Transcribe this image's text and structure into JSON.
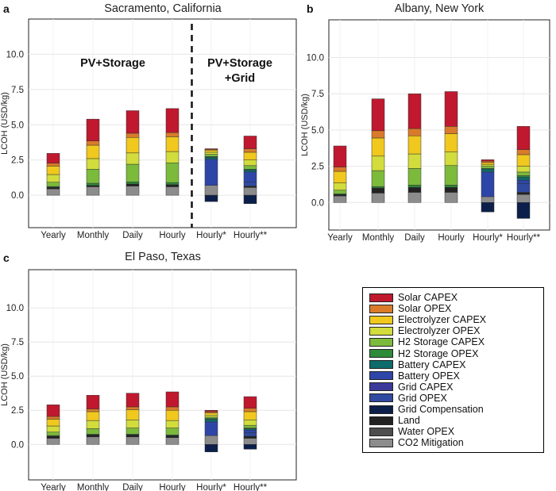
{
  "components": [
    "Solar CAPEX",
    "Solar OPEX",
    "Electrolyzer CAPEX",
    "Electrolyzer OPEX",
    "H2 Storage CAPEX",
    "H2 Storage OPEX",
    "Battery CAPEX",
    "Battery OPEX",
    "Grid CAPEX",
    "Grid OPEX",
    "Grid Compensation",
    "Land",
    "Water OPEX",
    "CO2 Mitigation"
  ],
  "colors": {
    "CO2 Mitigation": "#8c8c8c",
    "Water OPEX": "#4d4d4d",
    "Land": "#222222",
    "Grid Compensation": "#0b1f4a",
    "Grid OPEX": "#2f4aa0",
    "Grid CAPEX": "#3b3a9a",
    "Battery OPEX": "#2e45a8",
    "Battery CAPEX": "#0e6b6b",
    "H2 Storage OPEX": "#2e8b3a",
    "H2 Storage CAPEX": "#7cba3c",
    "Electrolyzer OPEX": "#d2dc3c",
    "Electrolyzer CAPEX": "#f0c81e",
    "Solar OPEX": "#d97b2a",
    "Solar CAPEX": "#c0182e"
  },
  "annotations": {
    "pv_storage": "PV+Storage",
    "pv_storage_grid_1": "PV+Storage",
    "pv_storage_grid_2": "+Grid"
  },
  "chart_data": [
    {
      "panel": "a",
      "title": "Sacramento, California",
      "type": "bar",
      "stacked": true,
      "ylabel": "LCOH (USD/kg)",
      "ylim": [
        -2.3,
        12.5
      ],
      "yticks": [
        "0.0",
        "2.5",
        "5.0",
        "7.5",
        "10.0"
      ],
      "categories": [
        "Yearly",
        "Monthly",
        "Daily",
        "Hourly",
        "Hourly*",
        "Hourly**"
      ],
      "divider_after_category": "Hourly",
      "stacks": [
        {
          "CO2 Mitigation": 0.45,
          "Land": 0.12,
          "H2 Storage OPEX": 0.05,
          "H2 Storage CAPEX": 0.3,
          "Electrolyzer OPEX": 0.55,
          "Electrolyzer CAPEX": 0.6,
          "Solar OPEX": 0.2,
          "Solar CAPEX": 0.7
        },
        {
          "CO2 Mitigation": 0.6,
          "Land": 0.1,
          "H2 Storage OPEX": 0.15,
          "H2 Storage CAPEX": 1.0,
          "Electrolyzer OPEX": 0.75,
          "Electrolyzer CAPEX": 0.95,
          "Solar OPEX": 0.3,
          "Solar CAPEX": 1.55
        },
        {
          "CO2 Mitigation": 0.65,
          "Land": 0.15,
          "H2 Storage OPEX": 0.15,
          "H2 Storage CAPEX": 1.25,
          "Electrolyzer OPEX": 0.8,
          "Electrolyzer CAPEX": 1.1,
          "Solar OPEX": 0.3,
          "Solar CAPEX": 1.6
        },
        {
          "CO2 Mitigation": 0.6,
          "Land": 0.15,
          "H2 Storage OPEX": 0.15,
          "H2 Storage CAPEX": 1.4,
          "Electrolyzer OPEX": 0.8,
          "Electrolyzer CAPEX": 1.05,
          "Solar OPEX": 0.3,
          "Solar CAPEX": 1.7
        },
        {
          "Grid Compensation": -0.45,
          "CO2 Mitigation": 0.7,
          "Battery OPEX": 1.85,
          "Battery CAPEX": 0.15,
          "H2 Storage OPEX": 0.05,
          "H2 Storage CAPEX": 0.15,
          "Electrolyzer OPEX": 0.15,
          "Electrolyzer CAPEX": 0.15,
          "Solar OPEX": 0.05,
          "Solar CAPEX": 0.05
        },
        {
          "Grid Compensation": -0.6,
          "CO2 Mitigation": 0.55,
          "Land": 0.1,
          "Grid OPEX": 0.3,
          "Battery OPEX": 0.7,
          "Battery CAPEX": 0.15,
          "H2 Storage OPEX": 0.05,
          "H2 Storage CAPEX": 0.25,
          "Electrolyzer OPEX": 0.4,
          "Electrolyzer CAPEX": 0.55,
          "Solar OPEX": 0.25,
          "Solar CAPEX": 0.9
        }
      ]
    },
    {
      "panel": "b",
      "title": "Albany, New York",
      "type": "bar",
      "stacked": true,
      "ylabel": "LCOH (USD/kg)",
      "ylim": [
        -1.9,
        12.6
      ],
      "yticks": [
        "0.0",
        "2.5",
        "5.0",
        "7.5",
        "10.0"
      ],
      "categories": [
        "Yearly",
        "Monthly",
        "Daily",
        "Hourly",
        "Hourly*",
        "Hourly**"
      ],
      "stacks": [
        {
          "CO2 Mitigation": 0.45,
          "Land": 0.1,
          "H2 Storage OPEX": 0.05,
          "H2 Storage CAPEX": 0.25,
          "Electrolyzer OPEX": 0.5,
          "Electrolyzer CAPEX": 0.8,
          "Solar OPEX": 0.3,
          "Solar CAPEX": 1.45
        },
        {
          "CO2 Mitigation": 0.65,
          "Land": 0.35,
          "H2 Storage OPEX": 0.1,
          "H2 Storage CAPEX": 1.1,
          "Electrolyzer OPEX": 1.0,
          "Electrolyzer CAPEX": 1.25,
          "Solar OPEX": 0.5,
          "Solar CAPEX": 2.2
        },
        {
          "CO2 Mitigation": 0.7,
          "Land": 0.35,
          "H2 Storage OPEX": 0.15,
          "H2 Storage CAPEX": 1.15,
          "Electrolyzer OPEX": 1.0,
          "Electrolyzer CAPEX": 1.25,
          "Solar OPEX": 0.5,
          "Solar CAPEX": 2.4
        },
        {
          "CO2 Mitigation": 0.7,
          "Land": 0.35,
          "H2 Storage OPEX": 0.15,
          "H2 Storage CAPEX": 1.35,
          "Electrolyzer OPEX": 0.95,
          "Electrolyzer CAPEX": 1.25,
          "Solar OPEX": 0.5,
          "Solar CAPEX": 2.4
        },
        {
          "Grid Compensation": -0.65,
          "CO2 Mitigation": 0.4,
          "Battery OPEX": 1.7,
          "Battery CAPEX": 0.2,
          "H2 Storage OPEX": 0.05,
          "H2 Storage CAPEX": 0.15,
          "Electrolyzer OPEX": 0.1,
          "Electrolyzer CAPEX": 0.15,
          "Solar OPEX": 0.1,
          "Solar CAPEX": 0.1
        },
        {
          "Grid Compensation": -1.1,
          "CO2 Mitigation": 0.55,
          "Land": 0.15,
          "Grid OPEX": 0.6,
          "Battery OPEX": 0.25,
          "Battery CAPEX": 0.2,
          "H2 Storage OPEX": 0.1,
          "H2 Storage CAPEX": 0.25,
          "Electrolyzer OPEX": 0.4,
          "Electrolyzer CAPEX": 0.8,
          "Solar OPEX": 0.35,
          "Solar CAPEX": 1.6
        }
      ]
    },
    {
      "panel": "c",
      "title": "El Paso, Texas",
      "type": "bar",
      "stacked": true,
      "ylabel": "LCOH (USD/kg)",
      "ylim": [
        -2.6,
        12.8
      ],
      "yticks": [
        "0.0",
        "2.5",
        "5.0",
        "7.5",
        "10.0"
      ],
      "categories": [
        "Yearly",
        "Monthly",
        "Daily",
        "Hourly",
        "Hourly*",
        "Hourly**"
      ],
      "stacks": [
        {
          "CO2 Mitigation": 0.45,
          "Land": 0.15,
          "H2 Storage OPEX": 0.05,
          "H2 Storage CAPEX": 0.25,
          "Electrolyzer OPEX": 0.45,
          "Electrolyzer CAPEX": 0.5,
          "Solar OPEX": 0.2,
          "Solar CAPEX": 0.85
        },
        {
          "CO2 Mitigation": 0.55,
          "Land": 0.15,
          "H2 Storage OPEX": 0.05,
          "H2 Storage CAPEX": 0.4,
          "Electrolyzer OPEX": 0.6,
          "Electrolyzer CAPEX": 0.65,
          "Solar OPEX": 0.2,
          "Solar CAPEX": 1.0
        },
        {
          "CO2 Mitigation": 0.55,
          "Land": 0.15,
          "H2 Storage OPEX": 0.05,
          "H2 Storage CAPEX": 0.45,
          "Electrolyzer OPEX": 0.6,
          "Electrolyzer CAPEX": 0.75,
          "Solar OPEX": 0.2,
          "Solar CAPEX": 1.0
        },
        {
          "CO2 Mitigation": 0.5,
          "Land": 0.15,
          "H2 Storage OPEX": 0.05,
          "H2 Storage CAPEX": 0.5,
          "Electrolyzer OPEX": 0.55,
          "Electrolyzer CAPEX": 0.75,
          "Solar OPEX": 0.25,
          "Solar CAPEX": 1.1
        },
        {
          "Grid Compensation": -0.55,
          "CO2 Mitigation": 0.65,
          "Battery OPEX": 1.0,
          "Battery CAPEX": 0.2,
          "H2 Storage OPEX": 0.05,
          "H2 Storage CAPEX": 0.1,
          "Electrolyzer OPEX": 0.15,
          "Electrolyzer CAPEX": 0.15,
          "Solar OPEX": 0.1,
          "Solar CAPEX": 0.1
        },
        {
          "Grid Compensation": -0.35,
          "CO2 Mitigation": 0.45,
          "Land": 0.15,
          "Grid OPEX": 0.25,
          "Battery OPEX": 0.2,
          "Battery CAPEX": 0.1,
          "H2 Storage OPEX": 0.05,
          "H2 Storage CAPEX": 0.2,
          "Electrolyzer OPEX": 0.4,
          "Electrolyzer CAPEX": 0.6,
          "Solar OPEX": 0.25,
          "Solar CAPEX": 0.85
        }
      ]
    }
  ]
}
